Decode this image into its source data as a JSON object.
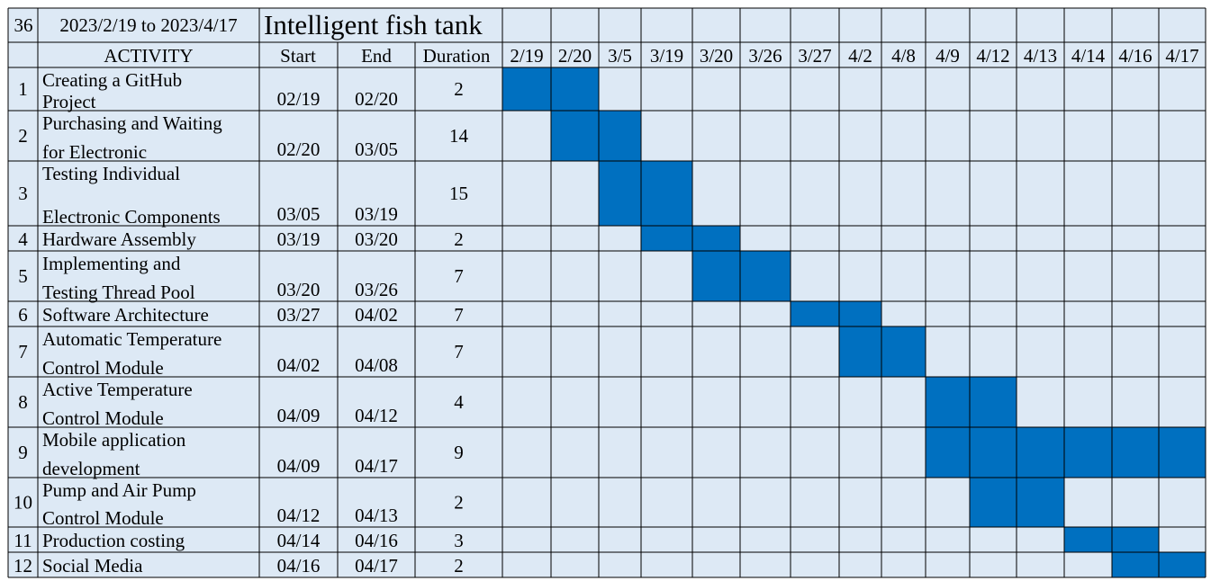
{
  "header": {
    "count": "36",
    "date_range": "2023/2/19 to 2023/4/17",
    "title": "Intelligent fish tank"
  },
  "columns": {
    "activity": "ACTIVITY",
    "start": "Start",
    "end": "End",
    "duration": "Duration"
  },
  "colors": {
    "cell_background": "#dde9f5",
    "bar_fill": "#0070c0",
    "grid_line": "#000000"
  },
  "chart_data": {
    "type": "table",
    "timeline": [
      "2/19",
      "2/20",
      "3/5",
      "3/19",
      "3/20",
      "3/26",
      "3/27",
      "4/2",
      "4/8",
      "4/9",
      "4/12",
      "4/13",
      "4/14",
      "4/16",
      "4/17"
    ],
    "tasks": [
      {
        "num": "1",
        "activity": [
          "Creating a GitHub",
          "Project"
        ],
        "start": "02/19",
        "end": "02/20",
        "duration": "2",
        "bar_from": "2/19",
        "bar_to": "2/20"
      },
      {
        "num": "2",
        "activity": [
          "Purchasing and Waiting",
          "for Electronic"
        ],
        "start": "02/20",
        "end": "03/05",
        "duration": "14",
        "bar_from": "2/20",
        "bar_to": "3/5"
      },
      {
        "num": "3",
        "activity": [
          "Testing Individual",
          "Electronic Components"
        ],
        "start": "03/05",
        "end": "03/19",
        "duration": "15",
        "bar_from": "3/5",
        "bar_to": "3/19"
      },
      {
        "num": "4",
        "activity": [
          "Hardware Assembly"
        ],
        "start": "03/19",
        "end": "03/20",
        "duration": "2",
        "bar_from": "3/19",
        "bar_to": "3/20"
      },
      {
        "num": "5",
        "activity": [
          "Implementing and",
          "Testing Thread Pool"
        ],
        "start": "03/20",
        "end": "03/26",
        "duration": "7",
        "bar_from": "3/20",
        "bar_to": "3/26"
      },
      {
        "num": "6",
        "activity": [
          "Software Architecture"
        ],
        "start": "03/27",
        "end": "04/02",
        "duration": "7",
        "bar_from": "3/27",
        "bar_to": "4/2"
      },
      {
        "num": "7",
        "activity": [
          "Automatic Temperature",
          "Control Module"
        ],
        "start": "04/02",
        "end": "04/08",
        "duration": "7",
        "bar_from": "4/2",
        "bar_to": "4/8"
      },
      {
        "num": "8",
        "activity": [
          "Active Temperature",
          "Control Module"
        ],
        "start": "04/09",
        "end": "04/12",
        "duration": "4",
        "bar_from": "4/9",
        "bar_to": "4/12"
      },
      {
        "num": "9",
        "activity": [
          "Mobile application",
          "development"
        ],
        "start": "04/09",
        "end": "04/17",
        "duration": "9",
        "bar_from": "4/9",
        "bar_to": "4/17"
      },
      {
        "num": "10",
        "activity": [
          "Pump and Air Pump",
          "Control Module"
        ],
        "start": "04/12",
        "end": "04/13",
        "duration": "2",
        "bar_from": "4/12",
        "bar_to": "4/13"
      },
      {
        "num": "11",
        "activity": [
          "Production costing"
        ],
        "start": "04/14",
        "end": "04/16",
        "duration": "3",
        "bar_from": "4/14",
        "bar_to": "4/16"
      },
      {
        "num": "12",
        "activity": [
          "Social Media"
        ],
        "start": "04/16",
        "end": "04/17",
        "duration": "2",
        "bar_from": "4/16",
        "bar_to": "4/17"
      }
    ]
  }
}
